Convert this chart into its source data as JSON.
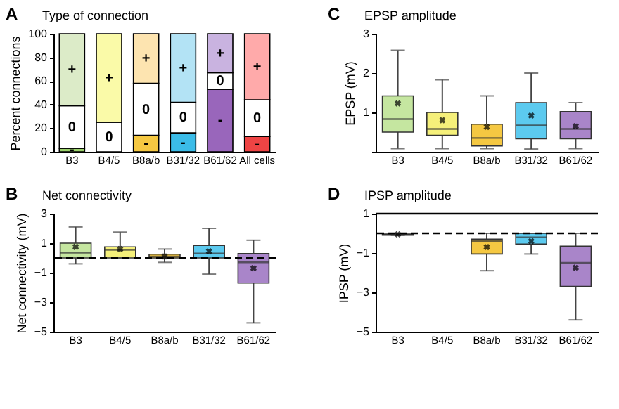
{
  "chart_data": [
    {
      "type": "bar",
      "stacked": true,
      "title": "Type of connection",
      "annotations": [
        "A"
      ],
      "ylabel": "Percent connections",
      "categories": [
        "B3",
        "B4/5",
        "B8a/b",
        "B31/32",
        "B61/62",
        "All cells"
      ],
      "ylim": [
        0,
        100
      ],
      "yticks": [
        0,
        20,
        40,
        60,
        80,
        100
      ],
      "grid": false,
      "series": [
        {
          "name": "-",
          "colors": [
            "#9bd16b",
            "#f5f07a",
            "#f5c842",
            "#3bbce8",
            "#9966bb",
            "#ee4444"
          ],
          "values": [
            3,
            0,
            14,
            16,
            53,
            13
          ]
        },
        {
          "name": "0",
          "colors": [
            "#ffffff",
            "#ffffff",
            "#ffffff",
            "#ffffff",
            "#ffffff",
            "#ffffff"
          ],
          "values": [
            36,
            25,
            44,
            26,
            14,
            31
          ]
        },
        {
          "name": "+",
          "colors": [
            "#dcebc8",
            "#fafaa8",
            "#fde4b0",
            "#b3e3f5",
            "#c9b3e0",
            "#ffaaaa"
          ],
          "values": [
            61,
            75,
            42,
            58,
            33,
            56
          ]
        }
      ]
    },
    {
      "type": "box",
      "title": "Net connectivity",
      "annotations": [
        "B"
      ],
      "ylabel": "Net connectivity (mV)",
      "categories": [
        "B3",
        "B4/5",
        "B8a/b",
        "B31/32",
        "B61/62"
      ],
      "colors": [
        "#c5e6a0",
        "#f5f07a",
        "#f5c842",
        "#5ccaef",
        "#a985c9"
      ],
      "ylim": [
        -5,
        3
      ],
      "yticks": [
        -5,
        -3,
        -1,
        1,
        3
      ],
      "grid": false,
      "ref_lines": [
        {
          "axis": "y",
          "value": 0,
          "line_style": "dashed"
        }
      ],
      "boxes": [
        {
          "low": -0.4,
          "q1": 0,
          "median": 0.35,
          "q3": 1.0,
          "high": 2.1,
          "mean": 0.75
        },
        {
          "low": 0,
          "q1": 0,
          "median": 0.55,
          "q3": 0.75,
          "high": 1.75,
          "mean": 0.6
        },
        {
          "low": -0.3,
          "q1": 0,
          "median": 0.1,
          "q3": 0.25,
          "high": 0.6,
          "mean": 0.1
        },
        {
          "low": -1.1,
          "q1": 0,
          "median": 0.3,
          "q3": 0.85,
          "high": 2.0,
          "mean": 0.45
        },
        {
          "low": -4.4,
          "q1": -1.7,
          "median": -0.3,
          "q3": 0.3,
          "high": 1.2,
          "mean": -0.7
        }
      ]
    },
    {
      "type": "box",
      "title": "EPSP amplitude",
      "annotations": [
        "C"
      ],
      "ylabel": "EPSP (mV)",
      "categories": [
        "B3",
        "B4/5",
        "B8a/b",
        "B31/32",
        "B61/62"
      ],
      "colors": [
        "#c5e6a0",
        "#f5f07a",
        "#f5c842",
        "#5ccaef",
        "#a985c9"
      ],
      "ylim": [
        0,
        3
      ],
      "yticks": [
        {
          "value": 0,
          "label": null
        },
        1,
        2,
        3
      ],
      "grid": false,
      "boxes": [
        {
          "low": 0.08,
          "q1": 0.5,
          "median": 0.83,
          "q3": 1.42,
          "high": 2.58,
          "mean": 1.23
        },
        {
          "low": 0.08,
          "q1": 0.42,
          "median": 0.58,
          "q3": 1.0,
          "high": 1.83,
          "mean": 0.8
        },
        {
          "low": 0.08,
          "q1": 0.15,
          "median": 0.35,
          "q3": 0.7,
          "high": 1.42,
          "mean": 0.63
        },
        {
          "low": 0.07,
          "q1": 0.33,
          "median": 0.67,
          "q3": 1.25,
          "high": 2.0,
          "mean": 0.92
        },
        {
          "low": 0.08,
          "q1": 0.33,
          "median": 0.58,
          "q3": 1.02,
          "high": 1.25,
          "mean": 0.65
        }
      ]
    },
    {
      "type": "box",
      "title": "IPSP amplitude",
      "annotations": [
        "D"
      ],
      "ylabel": "IPSP (mV)",
      "categories": [
        "B3",
        "B4/5",
        "B8a/b",
        "B31/32",
        "B61/62"
      ],
      "colors": [
        "#dddddd",
        "#f5f07a",
        "#f5c842",
        "#5ccaef",
        "#a985c9"
      ],
      "ylim": [
        -5,
        1
      ],
      "yticks": [
        -5,
        -3,
        -1,
        1
      ],
      "grid": false,
      "ref_lines": [
        {
          "axis": "y",
          "value": 1,
          "line_style": "solid"
        },
        {
          "axis": "y",
          "value": 0,
          "line_style": "dashed"
        }
      ],
      "boxes": [
        {
          "low": -0.1,
          "q1": -0.1,
          "median": -0.05,
          "q3": -0.05,
          "high": 0,
          "mean": -0.05
        },
        null,
        {
          "low": -1.9,
          "q1": -1.05,
          "median": -0.4,
          "q3": -0.3,
          "high": 0,
          "mean": -0.7
        },
        {
          "low": -1.05,
          "q1": -0.55,
          "median": -0.2,
          "q3": 0,
          "high": 0,
          "mean": -0.4
        },
        {
          "low": -4.4,
          "q1": -2.7,
          "median": -1.5,
          "q3": -0.65,
          "high": 0,
          "mean": -1.75
        }
      ]
    }
  ]
}
